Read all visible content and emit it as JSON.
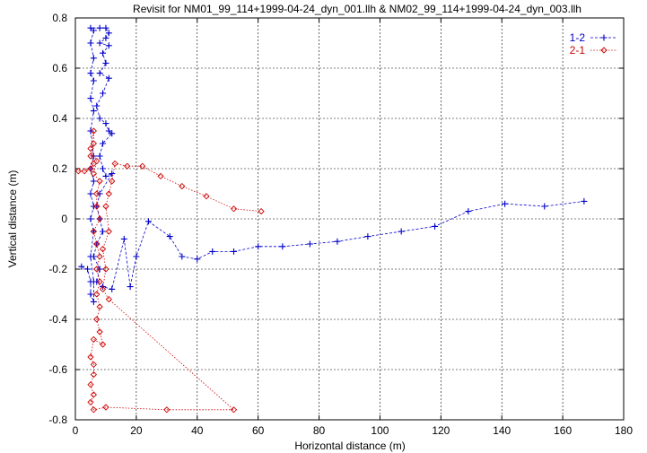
{
  "chart_data": {
    "type": "line",
    "title": "Revisit for NM01_99_114+1999-04-24_dyn_001.llh & NM02_99_114+1999-04-24_dyn_003.llh",
    "xlabel": "Horizontal distance (m)",
    "ylabel": "Vertical distance (m)",
    "xlim": [
      0,
      180
    ],
    "ylim": [
      -0.8,
      0.8
    ],
    "x_ticks": [
      "0",
      "20",
      "40",
      "60",
      "80",
      "100",
      "120",
      "140",
      "160",
      "180"
    ],
    "y_ticks": [
      "-0.8",
      "-0.6",
      "-0.4",
      "-0.2",
      "0",
      "0.2",
      "0.4",
      "0.6",
      "0.8"
    ],
    "grid": true,
    "legend_position": "top-right",
    "series": [
      {
        "name": "1-2",
        "color": "#0000cc",
        "marker": "plus",
        "line_style": "dashed",
        "points": [
          [
            2,
            -0.19
          ],
          [
            4,
            -0.2
          ],
          [
            5,
            -0.25
          ],
          [
            5,
            -0.3
          ],
          [
            6,
            -0.33
          ],
          [
            6,
            -0.25
          ],
          [
            5,
            -0.15
          ],
          [
            6,
            -0.05
          ],
          [
            5,
            0.0
          ],
          [
            6,
            0.05
          ],
          [
            5,
            0.1
          ],
          [
            6,
            0.15
          ],
          [
            5,
            0.2
          ],
          [
            6,
            0.25
          ],
          [
            5,
            0.35
          ],
          [
            6,
            0.43
          ],
          [
            5,
            0.48
          ],
          [
            6,
            0.55
          ],
          [
            5,
            0.58
          ],
          [
            6,
            0.64
          ],
          [
            5,
            0.7
          ],
          [
            6,
            0.75
          ],
          [
            5,
            0.76
          ],
          [
            8,
            0.76
          ],
          [
            10,
            0.76
          ],
          [
            11,
            0.74
          ],
          [
            10,
            0.72
          ],
          [
            8,
            0.7
          ],
          [
            11,
            0.69
          ],
          [
            9,
            0.66
          ],
          [
            10,
            0.62
          ],
          [
            8,
            0.58
          ],
          [
            11,
            0.56
          ],
          [
            9,
            0.5
          ],
          [
            7,
            0.45
          ],
          [
            8,
            0.4
          ],
          [
            10,
            0.38
          ],
          [
            11,
            0.35
          ],
          [
            12,
            0.34
          ],
          [
            9,
            0.3
          ],
          [
            8,
            0.25
          ],
          [
            9,
            0.2
          ],
          [
            10,
            0.17
          ],
          [
            12,
            0.18
          ],
          [
            8,
            0.1
          ],
          [
            7,
            0.05
          ],
          [
            8,
            0.0
          ],
          [
            9,
            -0.05
          ],
          [
            7,
            -0.1
          ],
          [
            6,
            -0.15
          ],
          [
            8,
            -0.2
          ],
          [
            7,
            -0.25
          ],
          [
            9,
            -0.27
          ],
          [
            12,
            -0.28
          ],
          [
            16,
            -0.08
          ],
          [
            18,
            -0.27
          ],
          [
            20,
            -0.15
          ],
          [
            24,
            -0.01
          ],
          [
            31,
            -0.07
          ],
          [
            35,
            -0.15
          ],
          [
            40,
            -0.16
          ],
          [
            45,
            -0.13
          ],
          [
            52,
            -0.13
          ],
          [
            60,
            -0.11
          ],
          [
            68,
            -0.11
          ],
          [
            77,
            -0.1
          ],
          [
            86,
            -0.09
          ],
          [
            96,
            -0.07
          ],
          [
            107,
            -0.05
          ],
          [
            118,
            -0.03
          ],
          [
            129,
            0.03
          ],
          [
            141,
            0.06
          ],
          [
            154,
            0.05
          ],
          [
            167,
            0.07
          ]
        ]
      },
      {
        "name": "2-1",
        "color": "#cc0000",
        "marker": "diamond",
        "line_style": "dotted",
        "points": [
          [
            1,
            0.19
          ],
          [
            3,
            0.19
          ],
          [
            5,
            0.2
          ],
          [
            6,
            0.22
          ],
          [
            5,
            0.25
          ],
          [
            6,
            0.3
          ],
          [
            6,
            0.35
          ],
          [
            5,
            0.28
          ],
          [
            7,
            0.23
          ],
          [
            6,
            0.18
          ],
          [
            8,
            0.15
          ],
          [
            7,
            0.1
          ],
          [
            7,
            0.05
          ],
          [
            8,
            0.0
          ],
          [
            6,
            -0.05
          ],
          [
            7,
            -0.1
          ],
          [
            8,
            -0.15
          ],
          [
            7,
            -0.2
          ],
          [
            8,
            -0.25
          ],
          [
            7,
            -0.3
          ],
          [
            8,
            -0.35
          ],
          [
            7,
            -0.4
          ],
          [
            8,
            -0.45
          ],
          [
            9,
            -0.5
          ],
          [
            6,
            -0.48
          ],
          [
            5,
            -0.55
          ],
          [
            6,
            -0.58
          ],
          [
            6,
            -0.62
          ],
          [
            5,
            -0.66
          ],
          [
            6,
            -0.7
          ],
          [
            5,
            -0.73
          ],
          [
            6,
            -0.76
          ],
          [
            10,
            -0.75
          ],
          [
            30,
            -0.76
          ],
          [
            52,
            -0.76
          ],
          [
            11,
            -0.32
          ],
          [
            9,
            -0.28
          ],
          [
            10,
            -0.2
          ],
          [
            9,
            -0.12
          ],
          [
            11,
            -0.05
          ],
          [
            10,
            0.05
          ],
          [
            11,
            0.1
          ],
          [
            12,
            0.15
          ],
          [
            13,
            0.22
          ],
          [
            17,
            0.21
          ],
          [
            22,
            0.21
          ],
          [
            28,
            0.17
          ],
          [
            35,
            0.13
          ],
          [
            43,
            0.09
          ],
          [
            52,
            0.04
          ],
          [
            61,
            0.03
          ]
        ]
      }
    ]
  }
}
